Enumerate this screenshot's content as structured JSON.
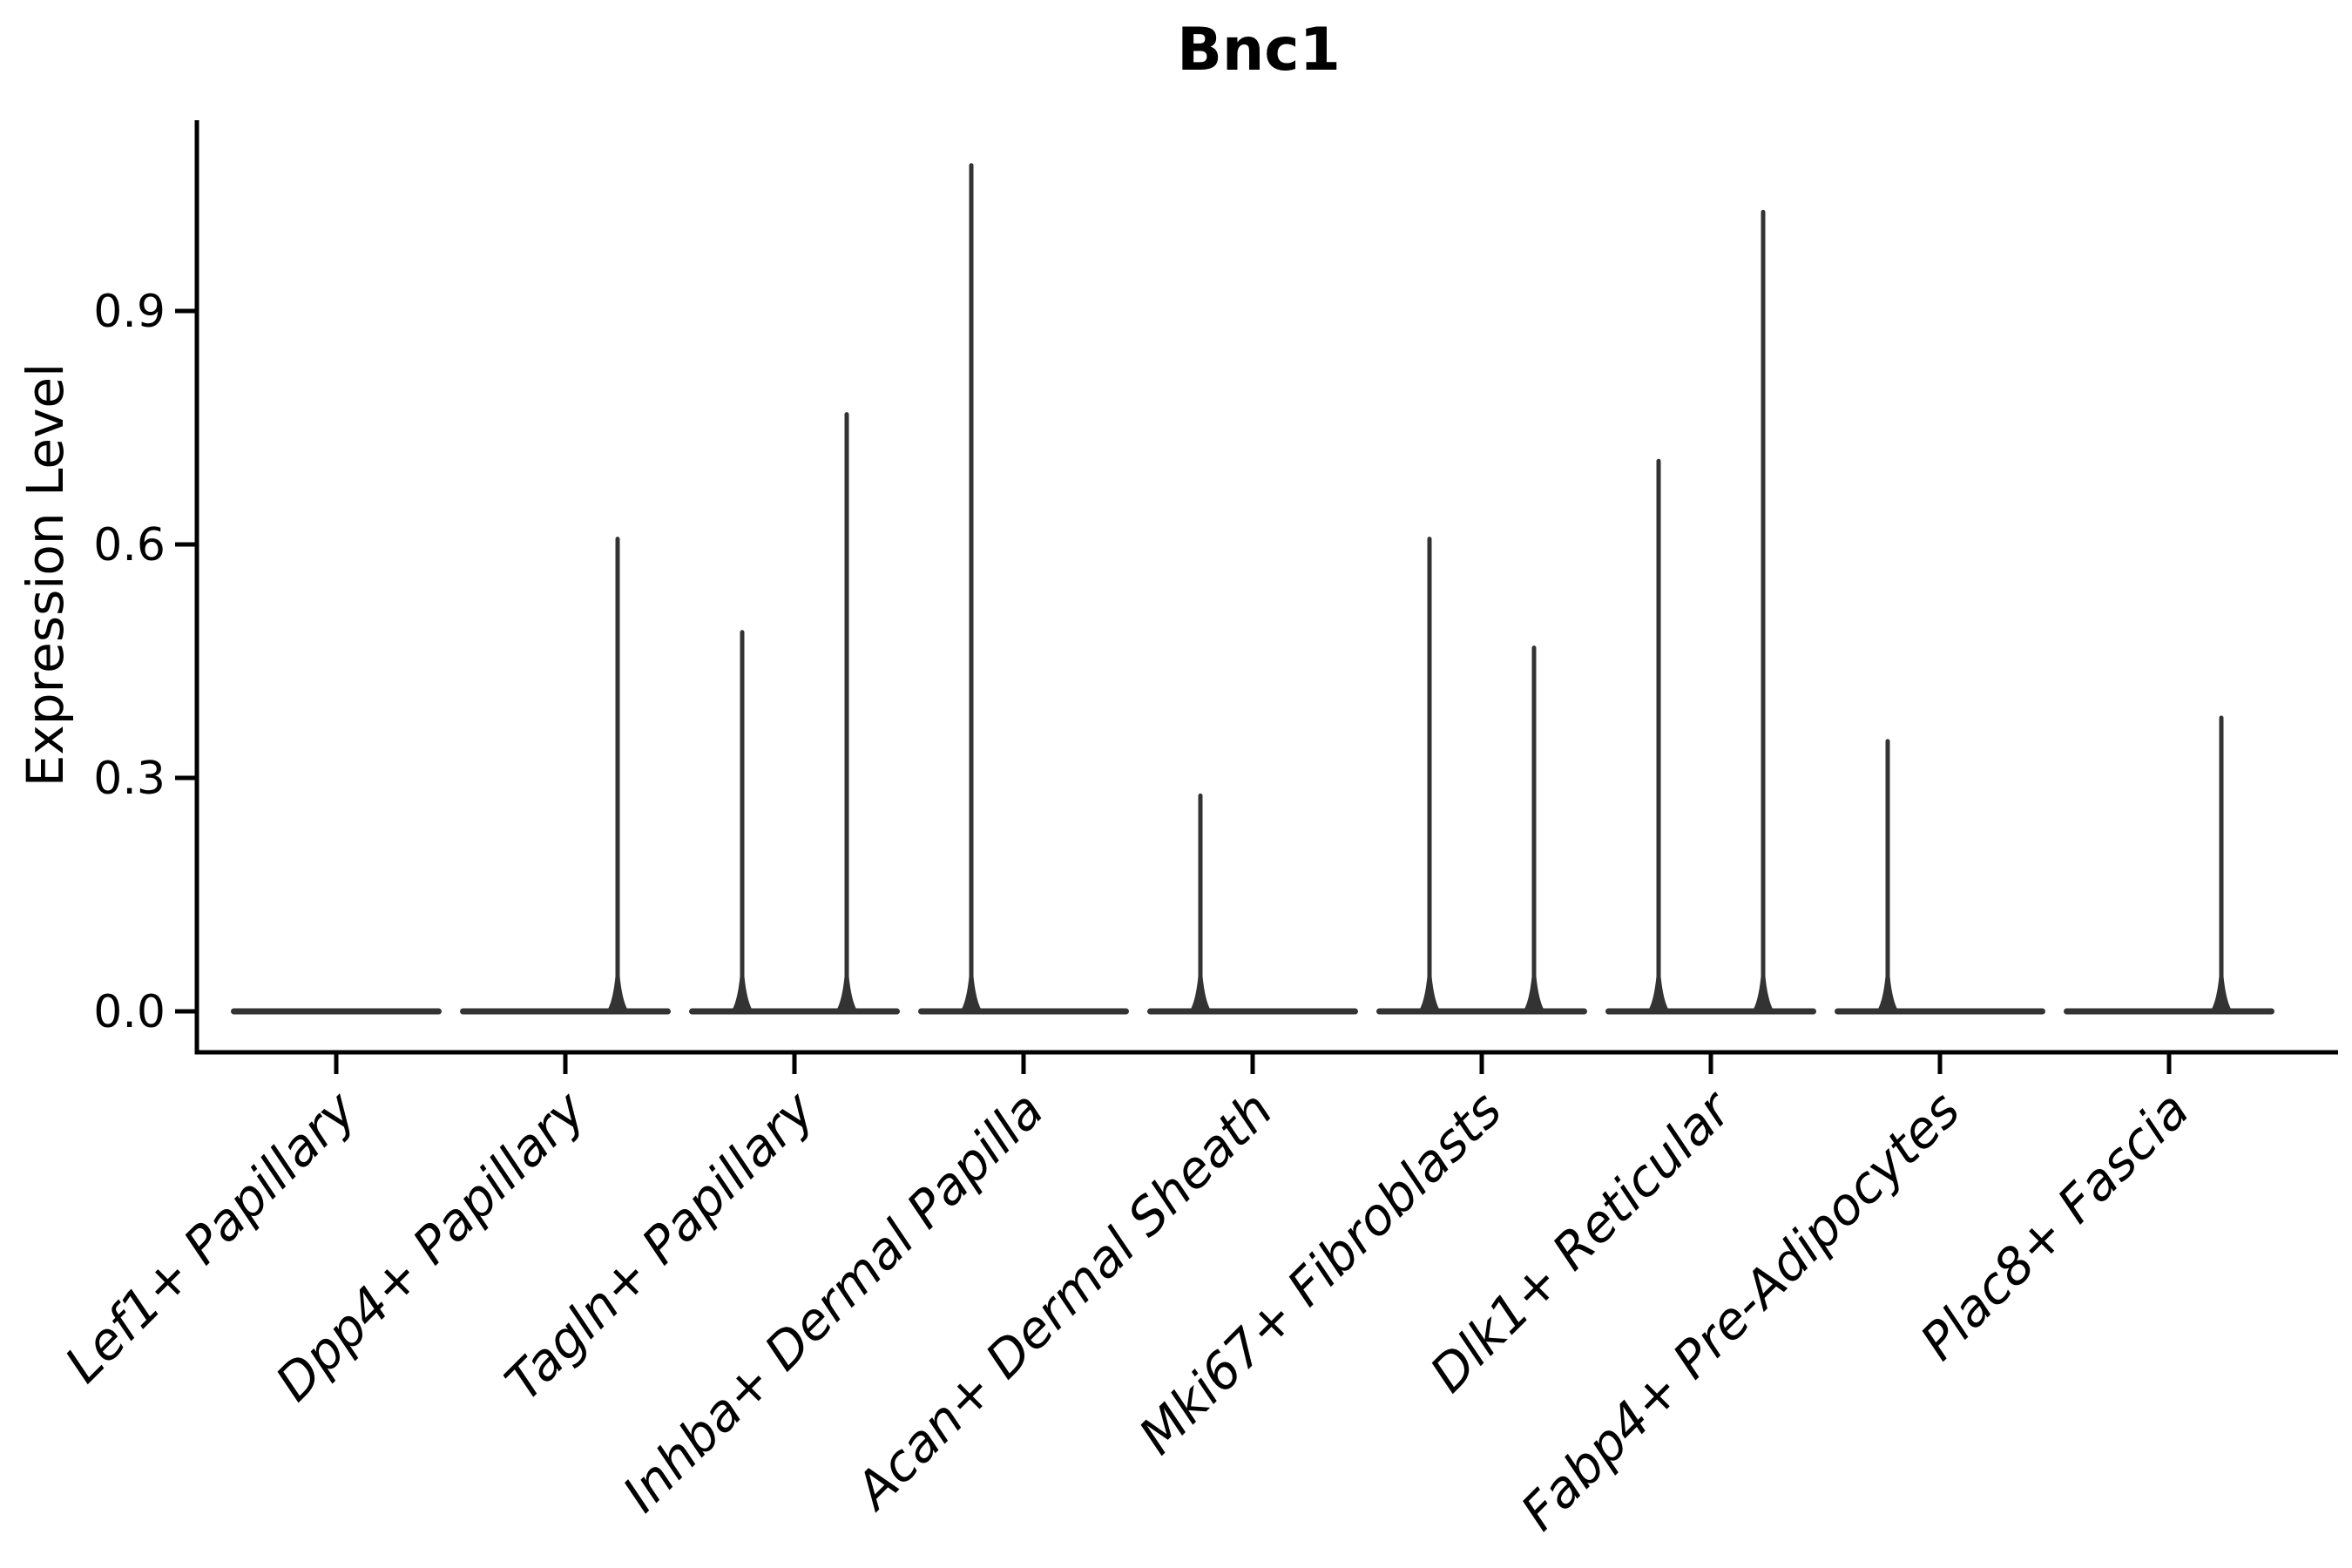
{
  "chart_data": {
    "type": "violin",
    "title": "Bnc1",
    "ylabel": "Expression Level",
    "xlabel": "",
    "grid": false,
    "legend": null,
    "ylim": [
      0,
      1.16
    ],
    "yticks": [
      {
        "value": 0.0,
        "label": "0.0"
      },
      {
        "value": 0.3,
        "label": "0.3"
      },
      {
        "value": 0.6,
        "label": "0.6"
      },
      {
        "value": 0.9,
        "label": "0.9"
      }
    ],
    "categories": [
      "Lef1+ Papillary",
      "Dpp4+ Papillary",
      "Tagln+ Papillary",
      "Inhba+ Dermal Papilla",
      "Acan+ Dermal Sheath",
      "Mki67+ Fibroblasts",
      "Dlk1+ Reticular",
      "Fabp4+ Pre-Adipocytes",
      "Plac8+ Fascia"
    ],
    "violins": [
      {
        "category": "Lef1+ Papillary",
        "base_value": 0.0,
        "spikes": []
      },
      {
        "category": "Dpp4+ Papillary",
        "base_value": 0.0,
        "spikes": [
          {
            "side": "right",
            "max": 0.61
          }
        ]
      },
      {
        "category": "Tagln+ Papillary",
        "base_value": 0.0,
        "spikes": [
          {
            "side": "left",
            "max": 0.49
          },
          {
            "side": "right",
            "max": 0.77
          }
        ]
      },
      {
        "category": "Inhba+ Dermal Papilla",
        "base_value": 0.0,
        "spikes": [
          {
            "side": "left",
            "max": 1.09
          }
        ]
      },
      {
        "category": "Acan+ Dermal Sheath",
        "base_value": 0.0,
        "spikes": [
          {
            "side": "left",
            "max": 0.28
          }
        ]
      },
      {
        "category": "Mki67+ Fibroblasts",
        "base_value": 0.0,
        "spikes": [
          {
            "side": "left",
            "max": 0.61
          },
          {
            "side": "right",
            "max": 0.47
          }
        ]
      },
      {
        "category": "Dlk1+ Reticular",
        "base_value": 0.0,
        "spikes": [
          {
            "side": "left",
            "max": 0.71
          },
          {
            "side": "right",
            "max": 1.03
          }
        ]
      },
      {
        "category": "Fabp4+ Pre-Adipocytes",
        "base_value": 0.0,
        "spikes": [
          {
            "side": "left",
            "max": 0.35
          }
        ]
      },
      {
        "category": "Plac8+ Fascia",
        "base_value": 0.0,
        "spikes": [
          {
            "side": "right",
            "max": 0.38
          }
        ]
      }
    ],
    "colors": {
      "violin": "#333333",
      "axis": "#000000",
      "text": "#000000",
      "background": "#ffffff"
    }
  }
}
